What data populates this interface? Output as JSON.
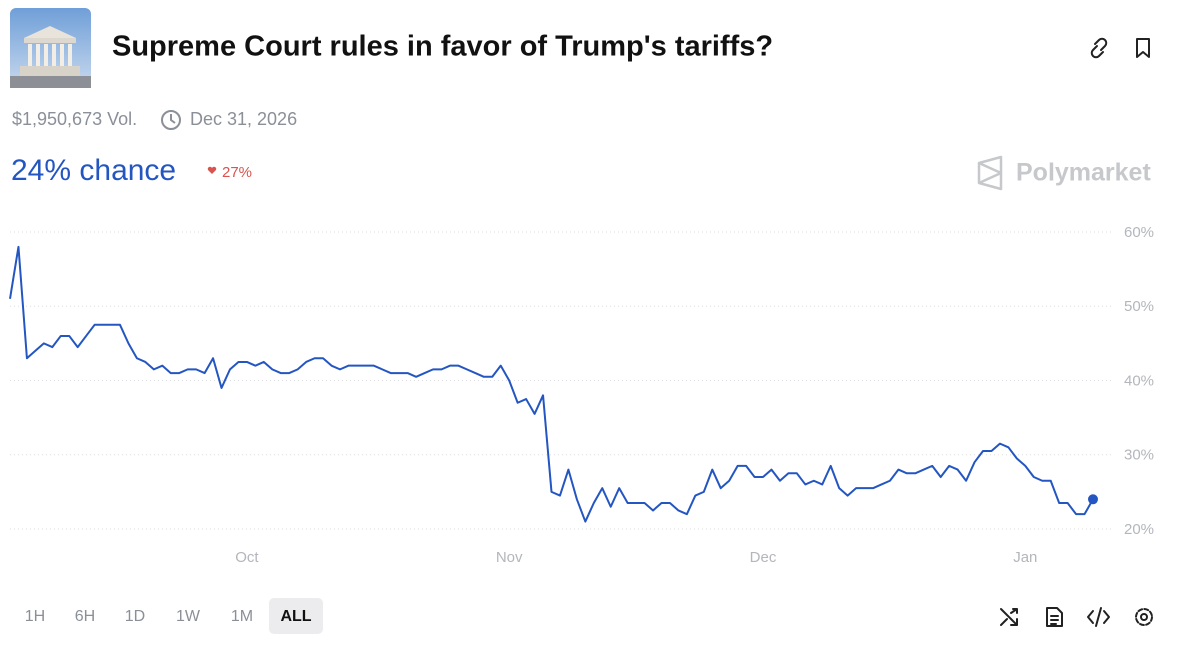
{
  "header": {
    "title": "Supreme Court rules in favor of Trump's tariffs?",
    "volume": "$1,950,673 Vol.",
    "end_date": "Dec 31, 2026",
    "chance": "24% chance",
    "change": "27%",
    "brand": "Polymarket"
  },
  "time_buttons": [
    "1H",
    "6H",
    "1D",
    "1W",
    "1M",
    "ALL"
  ],
  "chart_data": {
    "type": "line",
    "color": "#2456c2",
    "grid": true,
    "ylim": [
      20,
      60
    ],
    "yticks": [
      {
        "value": 20,
        "label": "20%"
      },
      {
        "value": 30,
        "label": "30%"
      },
      {
        "value": 40,
        "label": "40%"
      },
      {
        "value": 50,
        "label": "50%"
      },
      {
        "value": 60,
        "label": "60%"
      }
    ],
    "categories": [
      null,
      null,
      null,
      null,
      null,
      null,
      null,
      null,
      null,
      null,
      null,
      null,
      null,
      null,
      null,
      null,
      null,
      null,
      null,
      null,
      null,
      null,
      null,
      null,
      null,
      null,
      null,
      null,
      "Oct",
      null,
      null,
      null,
      null,
      null,
      null,
      null,
      null,
      null,
      null,
      null,
      null,
      null,
      null,
      null,
      null,
      null,
      null,
      null,
      null,
      null,
      null,
      null,
      null,
      null,
      null,
      null,
      null,
      null,
      null,
      "Nov",
      null,
      null,
      null,
      null,
      null,
      null,
      null,
      null,
      null,
      null,
      null,
      null,
      null,
      null,
      null,
      null,
      null,
      null,
      null,
      null,
      null,
      null,
      null,
      null,
      null,
      null,
      null,
      null,
      null,
      "Dec",
      null,
      null,
      null,
      null,
      null,
      null,
      null,
      null,
      null,
      null,
      null,
      null,
      null,
      null,
      null,
      null,
      null,
      null,
      null,
      null,
      null,
      null,
      null,
      null,
      null,
      null,
      null,
      null,
      null,
      null,
      "Jan",
      null,
      null,
      null,
      null,
      null,
      null,
      null,
      null
    ],
    "values": [
      51,
      58,
      43,
      44,
      45,
      44.5,
      46,
      46,
      44.5,
      46,
      47.5,
      47.5,
      47.5,
      47.5,
      45,
      43,
      42.5,
      41.5,
      42,
      41,
      41,
      41.5,
      41.5,
      41,
      43,
      39,
      41.5,
      42.5,
      42.5,
      42,
      42.5,
      41.5,
      41,
      41,
      41.5,
      42.5,
      43,
      43,
      42,
      41.5,
      42,
      42,
      42,
      42,
      41.5,
      41,
      41,
      41,
      40.5,
      41,
      41.5,
      41.5,
      42,
      42,
      41.5,
      41,
      40.5,
      40.5,
      42,
      40,
      37,
      37.5,
      35.5,
      38,
      25,
      24.5,
      28,
      24,
      21,
      23.5,
      25.5,
      23,
      25.5,
      23.5,
      23.5,
      23.5,
      22.5,
      23.5,
      23.5,
      22.5,
      22,
      24.5,
      25,
      28,
      25.5,
      26.5,
      28.5,
      28.5,
      27,
      27,
      28,
      26.5,
      27.5,
      27.5,
      26,
      26.5,
      26,
      28.5,
      25.5,
      24.5,
      25.5,
      25.5,
      25.5,
      26,
      26.5,
      28,
      27.5,
      27.5,
      28,
      28.5,
      27,
      28.5,
      28,
      26.5,
      29,
      30.5,
      30.5,
      31.5,
      31,
      29.5,
      28.5,
      27,
      26.5,
      26.5,
      23.5,
      23.5,
      22,
      22,
      24
    ]
  }
}
